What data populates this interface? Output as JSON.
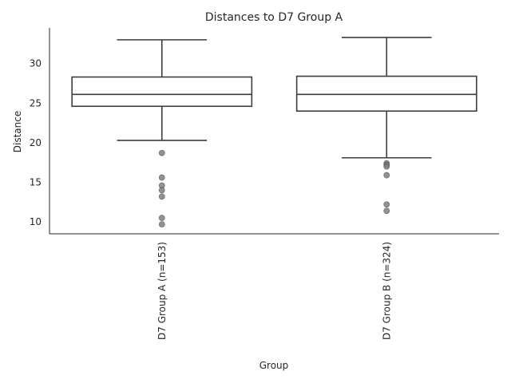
{
  "chart_data": {
    "type": "box",
    "title": "Distances to D7 Group A",
    "xlabel": "Group",
    "ylabel": "Distance",
    "ylim": [
      8.5,
      34.5
    ],
    "yticks": [
      10,
      15,
      20,
      25,
      30
    ],
    "grid": false,
    "categories": [
      "D7 Group A (n=153)",
      "D7 Group B (n=324)"
    ],
    "boxes": [
      {
        "label": "D7 Group A (n=153)",
        "whisker_low": 20.3,
        "q1": 24.6,
        "median": 26.1,
        "q3": 28.3,
        "whisker_high": 33.0,
        "fliers": [
          18.7,
          15.6,
          14.6,
          14.0,
          13.2,
          10.5,
          9.7
        ]
      },
      {
        "label": "D7 Group B (n=324)",
        "whisker_low": 18.1,
        "q1": 24.0,
        "median": 26.1,
        "q3": 28.4,
        "whisker_high": 33.3,
        "fliers": [
          17.4,
          17.2,
          17.0,
          15.9,
          12.2,
          11.4
        ]
      }
    ]
  }
}
